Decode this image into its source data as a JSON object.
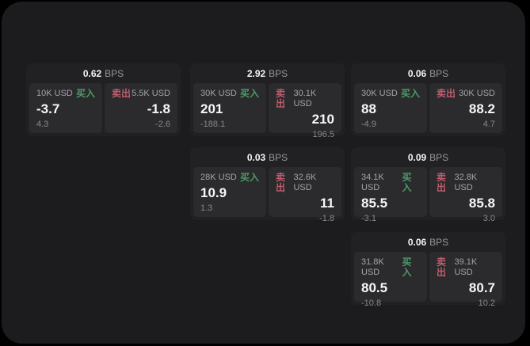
{
  "colors": {
    "page_bg": "#000000",
    "frame_bg": "#1c1c1e",
    "card_bg": "#212123",
    "panel_bg": "#2b2b2d",
    "buy_green": "#4d9a68",
    "sell_red": "#c05c6d"
  },
  "cards": [
    {
      "bps": "0.62",
      "unit": "BPS",
      "col": 0,
      "row": 0,
      "buy": {
        "label": "买入",
        "amount": "10K USD",
        "value": "-3.7",
        "sub": "4.3"
      },
      "sell": {
        "label": "卖出",
        "amount": "5.5K USD",
        "value": "-1.8",
        "sub": "-2.6"
      }
    },
    {
      "bps": "2.92",
      "unit": "BPS",
      "col": 1,
      "row": 0,
      "buy": {
        "label": "买入",
        "amount": "30K USD",
        "value": "201",
        "sub": "-188.1"
      },
      "sell": {
        "label": "卖出",
        "amount": "30.1K USD",
        "value": "210",
        "sub": "196.5"
      }
    },
    {
      "bps": "0.06",
      "unit": "BPS",
      "col": 2,
      "row": 0,
      "buy": {
        "label": "买入",
        "amount": "30K USD",
        "value": "88",
        "sub": "-4.9"
      },
      "sell": {
        "label": "卖出",
        "amount": "30K USD",
        "value": "88.2",
        "sub": "4.7"
      }
    },
    {
      "bps": "0.03",
      "unit": "BPS",
      "col": 1,
      "row": 1,
      "buy": {
        "label": "买入",
        "amount": "28K USD",
        "value": "10.9",
        "sub": "1.3"
      },
      "sell": {
        "label": "卖出",
        "amount": "32.6K USD",
        "value": "11",
        "sub": "-1.8"
      }
    },
    {
      "bps": "0.09",
      "unit": "BPS",
      "col": 2,
      "row": 1,
      "buy": {
        "label": "买入",
        "amount": "34.1K USD",
        "value": "85.5",
        "sub": "-3.1"
      },
      "sell": {
        "label": "卖出",
        "amount": "32.8K USD",
        "value": "85.8",
        "sub": "3.0"
      }
    },
    {
      "bps": "0.06",
      "unit": "BPS",
      "col": 2,
      "row": 2,
      "buy": {
        "label": "买入",
        "amount": "31.8K USD",
        "value": "80.5",
        "sub": "-10.8"
      },
      "sell": {
        "label": "卖出",
        "amount": "39.1K USD",
        "value": "80.7",
        "sub": "10.2"
      }
    }
  ]
}
